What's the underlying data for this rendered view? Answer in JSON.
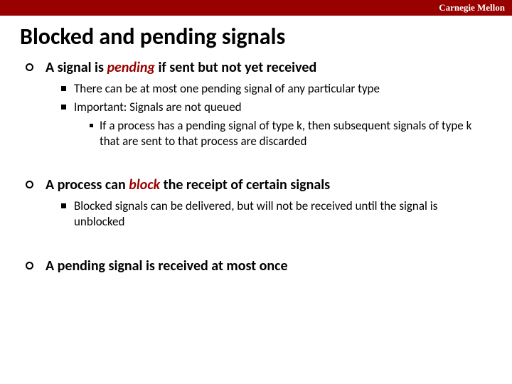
{
  "brand": {
    "label": "Carnegie Mellon",
    "bar_color": "#990000",
    "text_color": "#ffffff"
  },
  "title": "Blocked and pending signals",
  "emph_color": "#990000",
  "points": [
    {
      "pre": "A signal is ",
      "emph": "pending",
      "post": " if sent but not yet received",
      "sub": [
        {
          "text": "There can be at most one pending signal of any particular type"
        },
        {
          "text": "Important: Signals are not queued",
          "sub": [
            {
              "text": "If a process has a pending signal of type k, then subsequent signals of type k that are sent to that process are discarded"
            }
          ]
        }
      ]
    },
    {
      "pre": "A process can ",
      "emph": "block",
      "post": " the receipt of certain signals",
      "sub": [
        {
          "text": "Blocked signals can be delivered, but will not be received until the signal is unblocked"
        }
      ]
    },
    {
      "pre": "A pending signal is received at most once",
      "emph": "",
      "post": ""
    }
  ]
}
